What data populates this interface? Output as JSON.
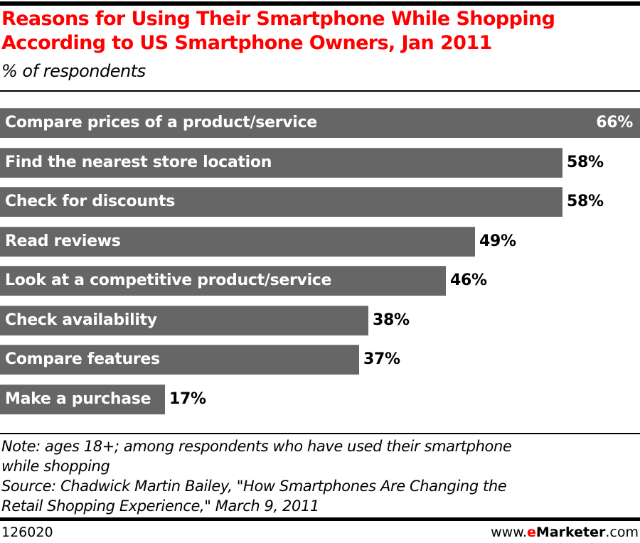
{
  "header": {
    "title_line1": "Reasons for Using Their Smartphone While Shopping",
    "title_line2": "According to US Smartphone Owners, Jan 2011",
    "subtitle": "% of respondents"
  },
  "chart_data": {
    "type": "bar",
    "orientation": "horizontal",
    "title": "Reasons for Using Their Smartphone While Shopping According to US Smartphone Owners, Jan 2011",
    "subtitle": "% of respondents",
    "xlabel": "",
    "ylabel": "",
    "unit": "%",
    "categories": [
      "Compare prices of a product/service",
      "Find the nearest store location",
      "Check for discounts",
      "Read reviews",
      "Look at a competitive product/service",
      "Check availability",
      "Compare features",
      "Make a purchase"
    ],
    "values": [
      66,
      58,
      58,
      49,
      46,
      38,
      37,
      17
    ],
    "value_labels": [
      "66%",
      "58%",
      "58%",
      "49%",
      "46%",
      "38%",
      "37%",
      "17%"
    ],
    "xlim": [
      0,
      66
    ],
    "grid": false,
    "legend": "none",
    "bar_color": "#666666"
  },
  "footer": {
    "note_line1": "Note: ages 18+; among respondents who have used their smartphone",
    "note_line2": "while shopping",
    "source_line1": "Source: Chadwick Martin Bailey, \"How Smartphones Are Changing the",
    "source_line2": "Retail Shopping Experience,\" March 9, 2011",
    "chart_id": "126020",
    "brand_prefix": "www.",
    "brand_e": "e",
    "brand_name": "Marketer",
    "brand_suffix": ".com"
  },
  "colors": {
    "title": "#ff0000",
    "bar": "#666666",
    "brand_accent": "#ff0000"
  }
}
